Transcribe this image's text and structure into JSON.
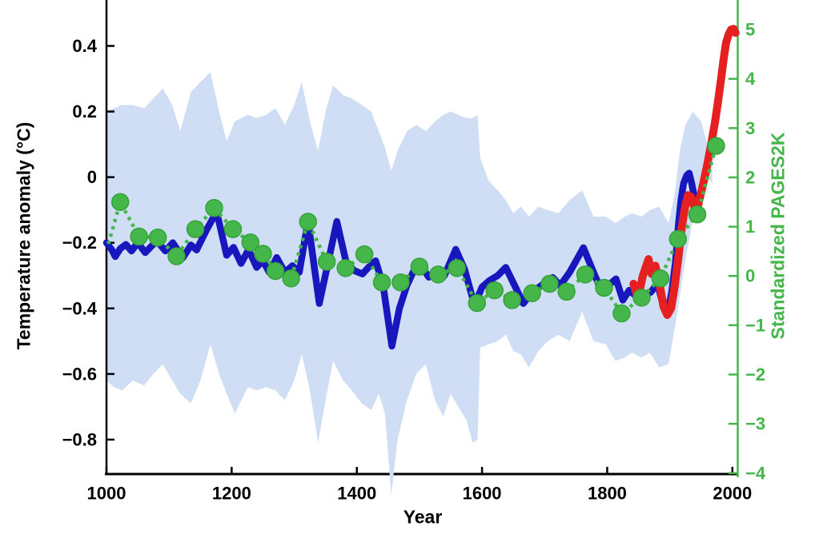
{
  "chart_data": {
    "type": "line",
    "title": "",
    "xlabel": "Year",
    "ylabel_left": "Temperature anomaly (°C)",
    "ylabel_right": "Standardized PAGES2K",
    "grid": false,
    "legend": "none",
    "colors": {
      "background": "#ffffff",
      "left_axis": "#000000",
      "right_axis": "#45b649",
      "band": "#cfdef4",
      "reconstruction_line": "#1717bd",
      "instrumental_line": "#e62020",
      "pages2k_green": "#45b649",
      "pages2k_marker_edge": "#35a23c"
    },
    "x_axis": {
      "min": 1000,
      "max": 2009.2,
      "ticks": [
        {
          "v": 1000,
          "label": "1000"
        },
        {
          "v": 1200,
          "label": "1200"
        },
        {
          "v": 1400,
          "label": "1400"
        },
        {
          "v": 1600,
          "label": "1600"
        },
        {
          "v": 1800,
          "label": "1800"
        },
        {
          "v": 2000,
          "label": "2000"
        }
      ]
    },
    "y_axis_left": {
      "min": -0.905,
      "max": 0.54,
      "ticks": [
        {
          "v": 0.4,
          "label": "0.4"
        },
        {
          "v": 0.2,
          "label": "0.2"
        },
        {
          "v": 0,
          "label": "0"
        },
        {
          "v": -0.2,
          "label": "−0.2"
        },
        {
          "v": -0.4,
          "label": "−0.4"
        },
        {
          "v": -0.6,
          "label": "−0.6"
        },
        {
          "v": -0.8,
          "label": "−0.8"
        }
      ]
    },
    "y_axis_right": {
      "min": -4.02,
      "max": 5.6,
      "ticks": [
        {
          "v": 5,
          "label": "5"
        },
        {
          "v": 4,
          "label": "4"
        },
        {
          "v": 3,
          "label": "3"
        },
        {
          "v": 2,
          "label": "2"
        },
        {
          "v": 1,
          "label": "1"
        },
        {
          "v": 0,
          "label": "0"
        },
        {
          "v": -1,
          "label": "−1"
        },
        {
          "v": -2,
          "label": "−2"
        },
        {
          "v": -3,
          "label": "−3"
        },
        {
          "v": -4,
          "label": "−4"
        }
      ]
    },
    "series": [
      {
        "name": "uncertainty-band",
        "kind": "band",
        "axis": "left",
        "points": [
          [
            1000,
            -0.62,
            0.2
          ],
          [
            1012,
            -0.64,
            0.21
          ],
          [
            1025,
            -0.65,
            0.22
          ],
          [
            1042,
            -0.62,
            0.22
          ],
          [
            1060,
            -0.635,
            0.21
          ],
          [
            1075,
            -0.6,
            0.24
          ],
          [
            1090,
            -0.57,
            0.27
          ],
          [
            1105,
            -0.62,
            0.22
          ],
          [
            1118,
            -0.66,
            0.14
          ],
          [
            1135,
            -0.69,
            0.26
          ],
          [
            1150,
            -0.62,
            0.29
          ],
          [
            1166,
            -0.51,
            0.32
          ],
          [
            1180,
            -0.6,
            0.2
          ],
          [
            1192,
            -0.66,
            0.11
          ],
          [
            1205,
            -0.72,
            0.17
          ],
          [
            1226,
            -0.64,
            0.19
          ],
          [
            1240,
            -0.65,
            0.18
          ],
          [
            1255,
            -0.64,
            0.19
          ],
          [
            1270,
            -0.65,
            0.21
          ],
          [
            1285,
            -0.68,
            0.16
          ],
          [
            1300,
            -0.62,
            0.22
          ],
          [
            1312,
            -0.54,
            0.29
          ],
          [
            1325,
            -0.65,
            0.17
          ],
          [
            1338,
            -0.81,
            0.08
          ],
          [
            1350,
            -0.68,
            0.2
          ],
          [
            1362,
            -0.56,
            0.28
          ],
          [
            1378,
            -0.62,
            0.25
          ],
          [
            1392,
            -0.65,
            0.24
          ],
          [
            1408,
            -0.69,
            0.22
          ],
          [
            1423,
            -0.71,
            0.2
          ],
          [
            1435,
            -0.66,
            0.14
          ],
          [
            1445,
            -0.72,
            0.09
          ],
          [
            1455,
            -0.97,
            0.02
          ],
          [
            1465,
            -0.8,
            0.08
          ],
          [
            1480,
            -0.68,
            0.14
          ],
          [
            1495,
            -0.6,
            0.16
          ],
          [
            1510,
            -0.57,
            0.14
          ],
          [
            1525,
            -0.68,
            0.17
          ],
          [
            1538,
            -0.73,
            0.19
          ],
          [
            1550,
            -0.66,
            0.2
          ],
          [
            1562,
            -0.7,
            0.19
          ],
          [
            1575,
            -0.74,
            0.18
          ],
          [
            1585,
            -0.81,
            0.18
          ],
          [
            1593,
            -0.8,
            0.19
          ],
          [
            1597,
            -0.52,
            0.06
          ],
          [
            1610,
            -0.51,
            -0.01
          ],
          [
            1625,
            -0.5,
            -0.04
          ],
          [
            1638,
            -0.48,
            -0.07
          ],
          [
            1650,
            -0.53,
            -0.11
          ],
          [
            1662,
            -0.54,
            -0.09
          ],
          [
            1675,
            -0.58,
            -0.12
          ],
          [
            1690,
            -0.53,
            -0.09
          ],
          [
            1705,
            -0.5,
            -0.1
          ],
          [
            1722,
            -0.48,
            -0.11
          ],
          [
            1740,
            -0.5,
            -0.07
          ],
          [
            1760,
            -0.41,
            -0.04
          ],
          [
            1778,
            -0.5,
            -0.12
          ],
          [
            1798,
            -0.51,
            -0.12
          ],
          [
            1813,
            -0.56,
            -0.14
          ],
          [
            1828,
            -0.55,
            -0.12
          ],
          [
            1840,
            -0.535,
            -0.11
          ],
          [
            1855,
            -0.55,
            -0.12
          ],
          [
            1868,
            -0.535,
            -0.1
          ],
          [
            1883,
            -0.58,
            -0.09
          ],
          [
            1898,
            -0.57,
            -0.14
          ],
          [
            1908,
            -0.46,
            -0.05
          ],
          [
            1916,
            -0.36,
            0.08
          ],
          [
            1925,
            -0.25,
            0.16
          ],
          [
            1937,
            -0.13,
            0.2
          ],
          [
            1950,
            -0.04,
            0.17
          ],
          [
            1960,
            0.0,
            0.1
          ],
          [
            1968,
            -0.02,
            0.02
          ]
        ]
      },
      {
        "name": "reconstruction",
        "kind": "line",
        "axis": "left",
        "width": 8.5,
        "points": [
          [
            1000,
            -0.2
          ],
          [
            1008,
            -0.22
          ],
          [
            1014,
            -0.242
          ],
          [
            1022,
            -0.218
          ],
          [
            1031,
            -0.205
          ],
          [
            1040,
            -0.225
          ],
          [
            1050,
            -0.2
          ],
          [
            1062,
            -0.23
          ],
          [
            1072,
            -0.21
          ],
          [
            1081,
            -0.195
          ],
          [
            1094,
            -0.225
          ],
          [
            1106,
            -0.2
          ],
          [
            1122,
            -0.246
          ],
          [
            1135,
            -0.207
          ],
          [
            1144,
            -0.222
          ],
          [
            1160,
            -0.16
          ],
          [
            1176,
            -0.105
          ],
          [
            1192,
            -0.238
          ],
          [
            1203,
            -0.214
          ],
          [
            1215,
            -0.263
          ],
          [
            1227,
            -0.221
          ],
          [
            1240,
            -0.275
          ],
          [
            1250,
            -0.255
          ],
          [
            1260,
            -0.29
          ],
          [
            1272,
            -0.245
          ],
          [
            1285,
            -0.29
          ],
          [
            1297,
            -0.27
          ],
          [
            1308,
            -0.29
          ],
          [
            1322,
            -0.134
          ],
          [
            1340,
            -0.385
          ],
          [
            1353,
            -0.27
          ],
          [
            1368,
            -0.135
          ],
          [
            1383,
            -0.26
          ],
          [
            1396,
            -0.285
          ],
          [
            1409,
            -0.295
          ],
          [
            1420,
            -0.272
          ],
          [
            1430,
            -0.255
          ],
          [
            1442,
            -0.33
          ],
          [
            1456,
            -0.515
          ],
          [
            1468,
            -0.4
          ],
          [
            1480,
            -0.33
          ],
          [
            1491,
            -0.285
          ],
          [
            1500,
            -0.262
          ],
          [
            1515,
            -0.305
          ],
          [
            1527,
            -0.282
          ],
          [
            1540,
            -0.3
          ],
          [
            1558,
            -0.22
          ],
          [
            1572,
            -0.28
          ],
          [
            1588,
            -0.39
          ],
          [
            1600,
            -0.335
          ],
          [
            1612,
            -0.315
          ],
          [
            1625,
            -0.3
          ],
          [
            1638,
            -0.275
          ],
          [
            1652,
            -0.33
          ],
          [
            1666,
            -0.385
          ],
          [
            1680,
            -0.35
          ],
          [
            1695,
            -0.33
          ],
          [
            1706,
            -0.315
          ],
          [
            1713,
            -0.306
          ],
          [
            1725,
            -0.33
          ],
          [
            1740,
            -0.29
          ],
          [
            1762,
            -0.215
          ],
          [
            1776,
            -0.28
          ],
          [
            1791,
            -0.348
          ],
          [
            1802,
            -0.33
          ],
          [
            1814,
            -0.31
          ],
          [
            1825,
            -0.375
          ],
          [
            1835,
            -0.345
          ],
          [
            1846,
            -0.362
          ],
          [
            1857,
            -0.365
          ],
          [
            1870,
            -0.35
          ],
          [
            1880,
            -0.324
          ],
          [
            1888,
            -0.38
          ],
          [
            1896,
            -0.42
          ],
          [
            1903,
            -0.35
          ],
          [
            1909,
            -0.26
          ],
          [
            1914,
            -0.141
          ],
          [
            1918,
            -0.068
          ],
          [
            1922,
            -0.019
          ],
          [
            1927,
            0.005
          ],
          [
            1931,
            0.012
          ],
          [
            1935,
            -0.019
          ],
          [
            1940,
            -0.068
          ],
          [
            1944,
            -0.105
          ]
        ]
      },
      {
        "name": "instrumental",
        "kind": "line",
        "axis": "left",
        "width": 10,
        "points": [
          [
            1842,
            -0.325
          ],
          [
            1849,
            -0.37
          ],
          [
            1857,
            -0.3
          ],
          [
            1866,
            -0.25
          ],
          [
            1871,
            -0.295
          ],
          [
            1877,
            -0.27
          ],
          [
            1884,
            -0.33
          ],
          [
            1890,
            -0.395
          ],
          [
            1896,
            -0.42
          ],
          [
            1902,
            -0.4
          ],
          [
            1908,
            -0.33
          ],
          [
            1914,
            -0.24
          ],
          [
            1919,
            -0.155
          ],
          [
            1924,
            -0.095
          ],
          [
            1929,
            -0.055
          ],
          [
            1934,
            -0.06
          ],
          [
            1939,
            -0.09
          ],
          [
            1944,
            -0.095
          ],
          [
            1949,
            -0.055
          ],
          [
            1954,
            -0.015
          ],
          [
            1960,
            0.04
          ],
          [
            1966,
            0.1
          ],
          [
            1972,
            0.165
          ],
          [
            1977,
            0.23
          ],
          [
            1982,
            0.3
          ],
          [
            1986,
            0.36
          ],
          [
            1990,
            0.41
          ],
          [
            1994,
            0.435
          ],
          [
            1998,
            0.45
          ],
          [
            2002,
            0.452
          ],
          [
            2005,
            0.44
          ]
        ]
      },
      {
        "name": "pages2k",
        "kind": "dotted-line-with-markers",
        "axis": "right",
        "width": 4.5,
        "marker_radius": 10.5,
        "first_point_no_marker": true,
        "points": [
          [
            1003,
            0.65
          ],
          [
            1022,
            1.5
          ],
          [
            1052,
            0.8
          ],
          [
            1082,
            0.78
          ],
          [
            1112,
            0.4
          ],
          [
            1142,
            0.95
          ],
          [
            1172,
            1.38
          ],
          [
            1202,
            0.95
          ],
          [
            1230,
            0.68
          ],
          [
            1250,
            0.45
          ],
          [
            1270,
            0.1
          ],
          [
            1295,
            -0.05
          ],
          [
            1322,
            1.1
          ],
          [
            1352,
            0.29
          ],
          [
            1382,
            0.16
          ],
          [
            1412,
            0.44
          ],
          [
            1440,
            -0.13
          ],
          [
            1470,
            -0.13
          ],
          [
            1500,
            0.19
          ],
          [
            1530,
            0.03
          ],
          [
            1560,
            0.16
          ],
          [
            1592,
            -0.55
          ],
          [
            1620,
            -0.29
          ],
          [
            1648,
            -0.49
          ],
          [
            1680,
            -0.35
          ],
          [
            1708,
            -0.16
          ],
          [
            1735,
            -0.32
          ],
          [
            1765,
            0.03
          ],
          [
            1795,
            -0.24
          ],
          [
            1823,
            -0.76
          ],
          [
            1855,
            -0.44
          ],
          [
            1885,
            -0.05
          ],
          [
            1913,
            0.75
          ],
          [
            1944,
            1.25
          ],
          [
            1974,
            2.64
          ]
        ]
      }
    ]
  }
}
